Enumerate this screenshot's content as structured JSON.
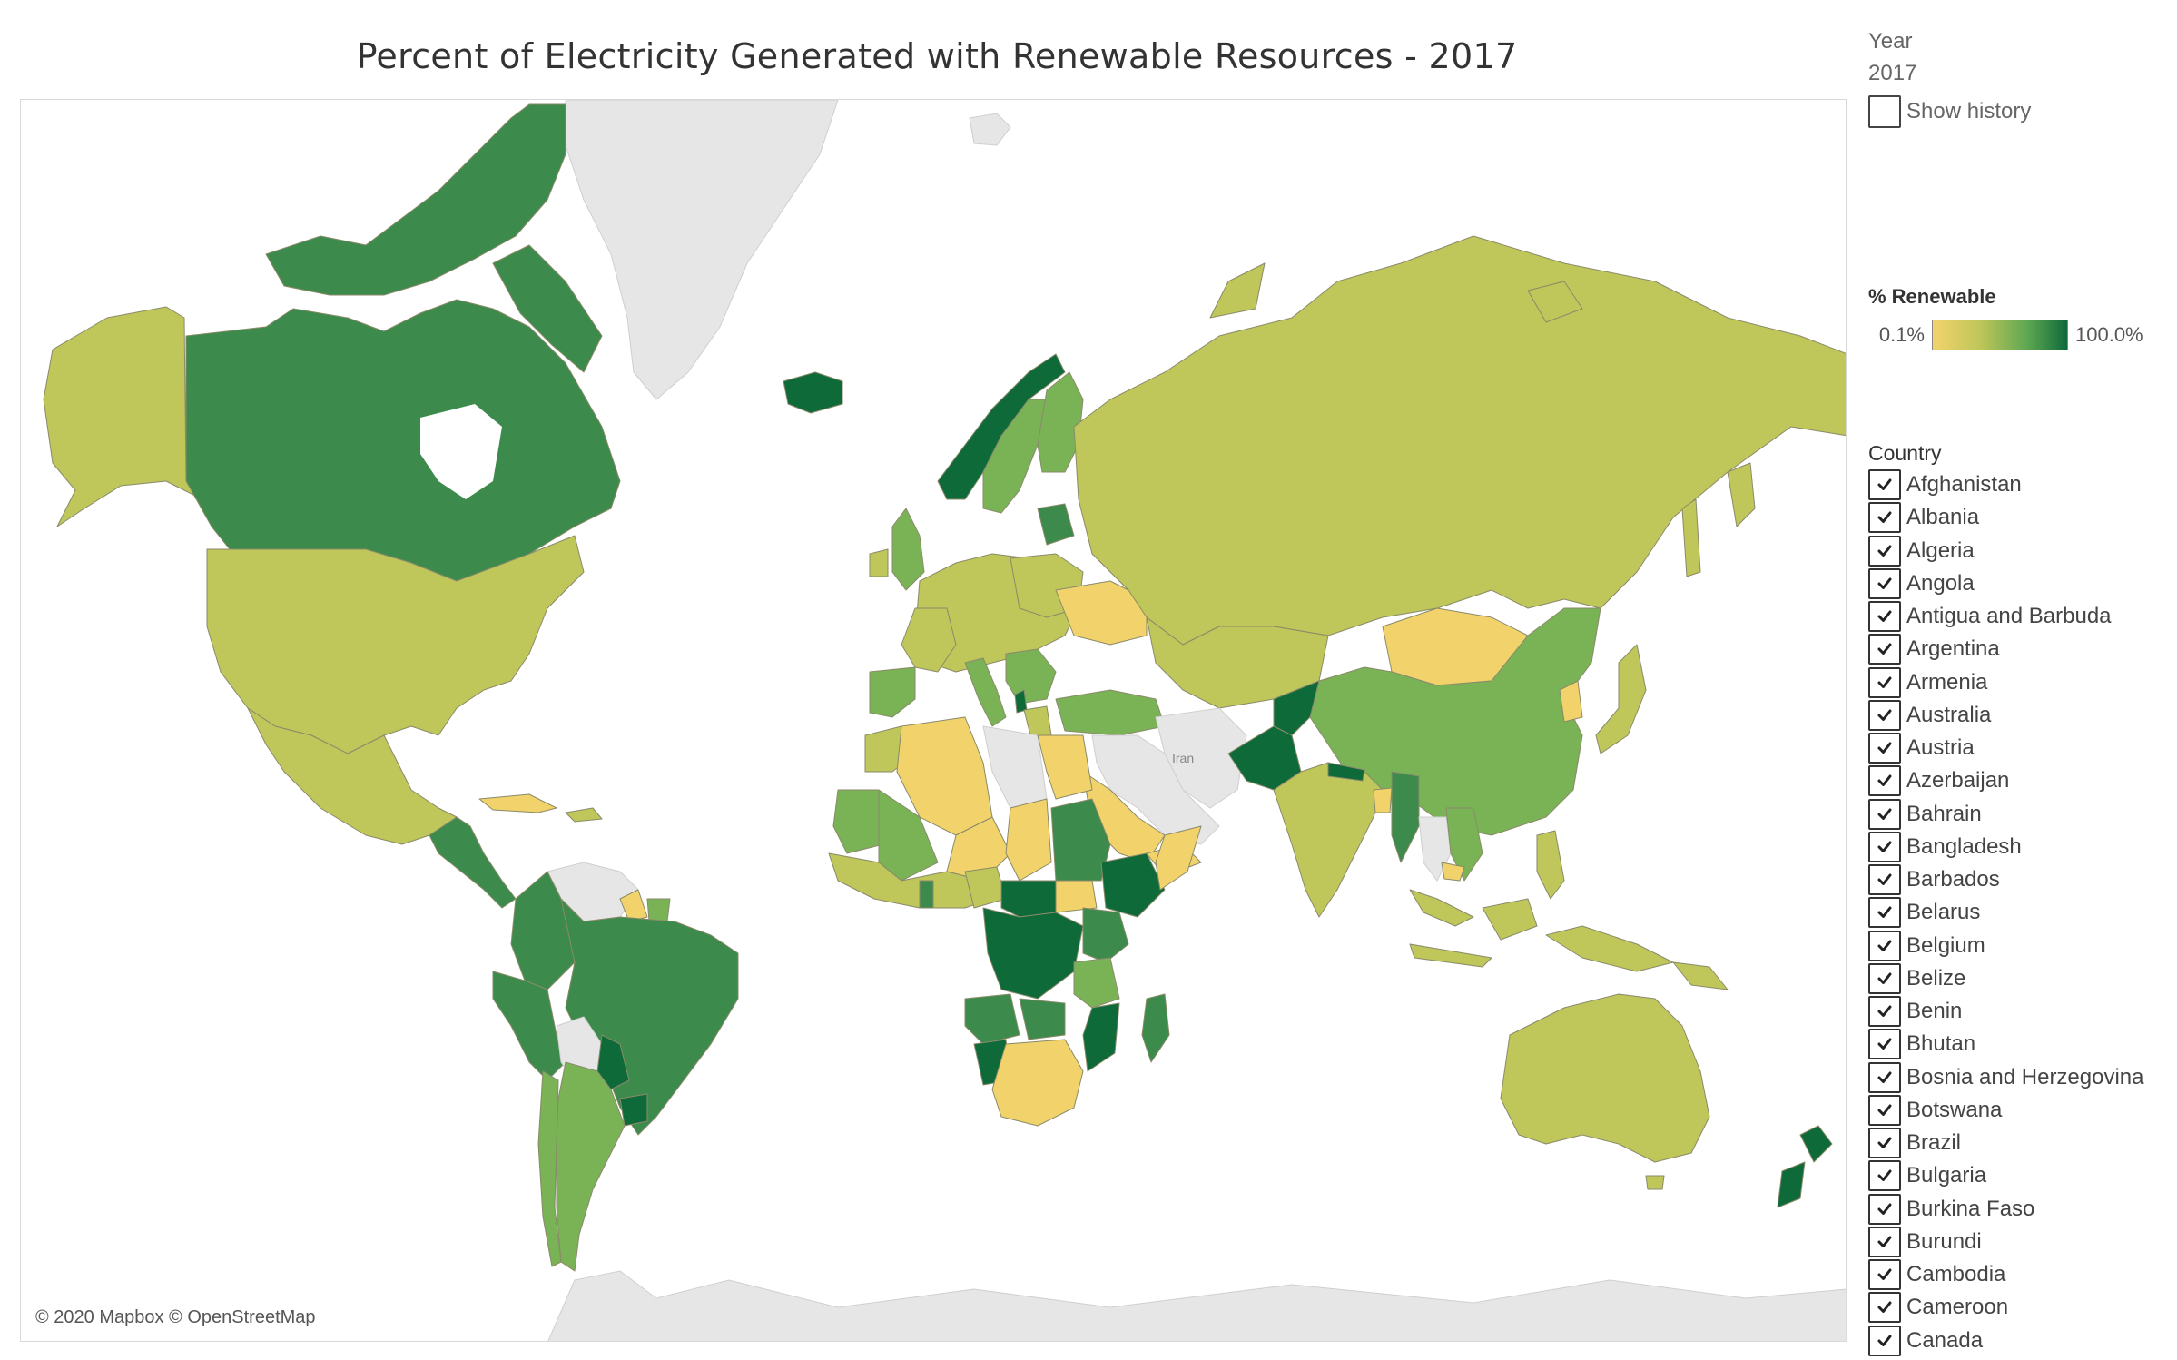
{
  "title": "Percent of Electricity Generated with Renewable Resources - 2017",
  "map": {
    "attribution": "© 2020 Mapbox © OpenStreetMap",
    "labels": {
      "iran": "Iran"
    },
    "colors": {
      "low": "#f2d36b",
      "mid_low": "#bfc65a",
      "mid": "#79b356",
      "mid_high": "#3d8b4c",
      "high": "#0f6a3a",
      "no_data": "#e6e6e6"
    }
  },
  "filters": {
    "year_title": "Year",
    "year_value": "2017",
    "show_history_label": "Show history",
    "show_history_checked": false
  },
  "legend": {
    "title": "% Renewable",
    "min_label": "0.1%",
    "max_label": "100.0%",
    "min_color": "#f2d36b",
    "max_color": "#0f6a3a"
  },
  "country_filter": {
    "title": "Country",
    "items": [
      {
        "name": "Afghanistan",
        "checked": true
      },
      {
        "name": "Albania",
        "checked": true
      },
      {
        "name": "Algeria",
        "checked": true
      },
      {
        "name": "Angola",
        "checked": true
      },
      {
        "name": "Antigua and Barbuda",
        "checked": true
      },
      {
        "name": "Argentina",
        "checked": true
      },
      {
        "name": "Armenia",
        "checked": true
      },
      {
        "name": "Australia",
        "checked": true
      },
      {
        "name": "Austria",
        "checked": true
      },
      {
        "name": "Azerbaijan",
        "checked": true
      },
      {
        "name": "Bahrain",
        "checked": true
      },
      {
        "name": "Bangladesh",
        "checked": true
      },
      {
        "name": "Barbados",
        "checked": true
      },
      {
        "name": "Belarus",
        "checked": true
      },
      {
        "name": "Belgium",
        "checked": true
      },
      {
        "name": "Belize",
        "checked": true
      },
      {
        "name": "Benin",
        "checked": true
      },
      {
        "name": "Bhutan",
        "checked": true
      },
      {
        "name": "Bosnia and Herzegovina",
        "checked": true
      },
      {
        "name": "Botswana",
        "checked": true
      },
      {
        "name": "Brazil",
        "checked": true
      },
      {
        "name": "Bulgaria",
        "checked": true
      },
      {
        "name": "Burkina Faso",
        "checked": true
      },
      {
        "name": "Burundi",
        "checked": true
      },
      {
        "name": "Cambodia",
        "checked": true
      },
      {
        "name": "Cameroon",
        "checked": true
      },
      {
        "name": "Canada",
        "checked": true
      }
    ]
  }
}
